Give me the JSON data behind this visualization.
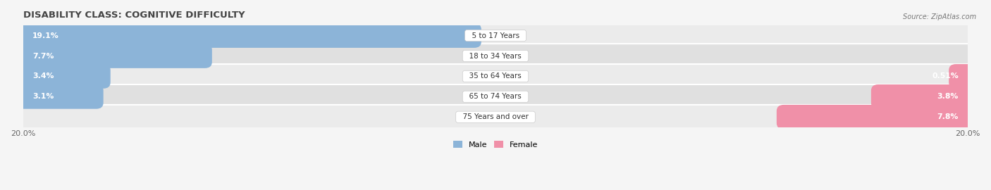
{
  "title": "DISABILITY CLASS: COGNITIVE DIFFICULTY",
  "source_text": "Source: ZipAtlas.com",
  "categories": [
    "5 to 17 Years",
    "18 to 34 Years",
    "35 to 64 Years",
    "65 to 74 Years",
    "75 Years and over"
  ],
  "male_values": [
    19.1,
    7.7,
    3.4,
    3.1,
    0.0
  ],
  "female_values": [
    0.0,
    0.0,
    0.51,
    3.8,
    7.8
  ],
  "male_color": "#8cb4d8",
  "female_color": "#f090a8",
  "row_bg_even": "#ebebeb",
  "row_bg_odd": "#e0e0e0",
  "fig_bg": "#f5f5f5",
  "xlim": 20.0,
  "bar_height": 0.6,
  "title_fontsize": 9.5,
  "label_fontsize": 7.8,
  "cat_fontsize": 7.5,
  "axis_fontsize": 8,
  "legend_fontsize": 8,
  "male_label_white_thresh": 1.5,
  "female_label_white_thresh": 1.5
}
